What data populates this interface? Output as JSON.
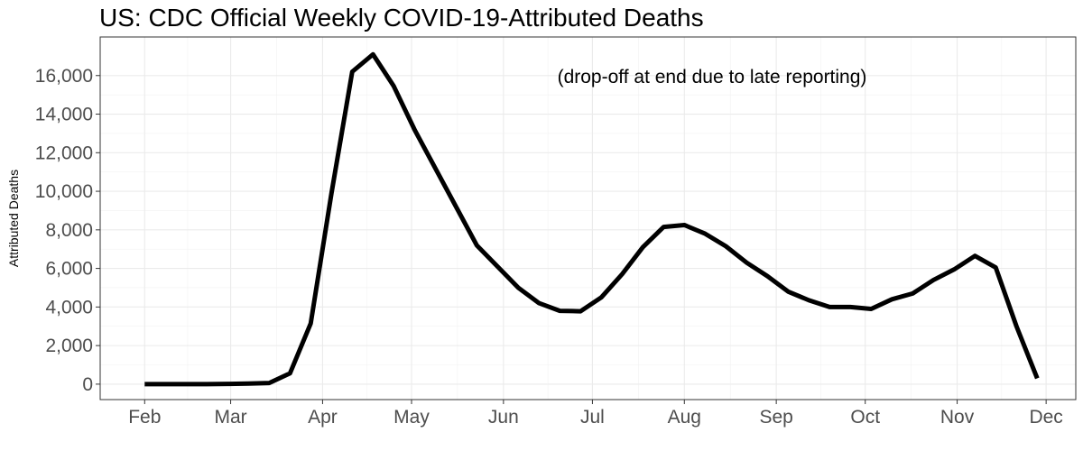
{
  "chart_data": {
    "type": "line",
    "title": "US: CDC Official Weekly COVID-19-Attributed Deaths",
    "xlabel": "",
    "ylabel": "Attributed Deaths",
    "annotation": "(drop-off at end due to late reporting)",
    "x_ticks": [
      "Feb",
      "Mar",
      "Apr",
      "May",
      "Jun",
      "Jul",
      "Aug",
      "Sep",
      "Oct",
      "Nov",
      "Dec"
    ],
    "x_tick_dates": [
      "2020-02-01",
      "2020-03-01",
      "2020-04-01",
      "2020-05-01",
      "2020-06-01",
      "2020-07-01",
      "2020-08-01",
      "2020-09-01",
      "2020-10-01",
      "2020-11-01",
      "2020-12-01"
    ],
    "y_ticks": [
      0,
      2000,
      4000,
      6000,
      8000,
      10000,
      12000,
      14000,
      16000
    ],
    "y_tick_labels": [
      "0",
      "2,000",
      "4,000",
      "6,000",
      "8,000",
      "10,000",
      "12,000",
      "14,000",
      "16,000"
    ],
    "xlim": [
      "2020-01-17",
      "2020-12-11"
    ],
    "ylim": [
      -800,
      18000
    ],
    "grid": true,
    "line_color": "#000000",
    "series": [
      {
        "x": [
          "2020-02-01",
          "2020-02-08",
          "2020-02-15",
          "2020-02-22",
          "2020-02-29",
          "2020-03-07",
          "2020-03-14",
          "2020-03-21",
          "2020-03-28",
          "2020-04-04",
          "2020-04-11",
          "2020-04-18",
          "2020-04-25",
          "2020-05-02",
          "2020-05-09",
          "2020-05-16",
          "2020-05-23",
          "2020-05-30",
          "2020-06-06",
          "2020-06-13",
          "2020-06-20",
          "2020-06-27",
          "2020-07-04",
          "2020-07-11",
          "2020-07-18",
          "2020-07-25",
          "2020-08-01",
          "2020-08-08",
          "2020-08-15",
          "2020-08-22",
          "2020-08-29",
          "2020-09-05",
          "2020-09-12",
          "2020-09-19",
          "2020-09-26",
          "2020-10-03",
          "2020-10-10",
          "2020-10-17",
          "2020-10-24",
          "2020-10-31",
          "2020-11-07",
          "2020-11-14",
          "2020-11-21",
          "2020-11-28"
        ],
        "y": [
          0,
          0,
          0,
          0,
          10,
          30,
          60,
          560,
          3150,
          9900,
          16200,
          17100,
          15450,
          13200,
          11200,
          9200,
          7200,
          6100,
          5000,
          4200,
          3800,
          3780,
          4500,
          5700,
          7100,
          8150,
          8250,
          7800,
          7150,
          6300,
          5600,
          4800,
          4350,
          4000,
          4000,
          3900,
          4400,
          4700,
          5400,
          5950,
          6650,
          6050,
          3000,
          300
        ]
      }
    ]
  }
}
